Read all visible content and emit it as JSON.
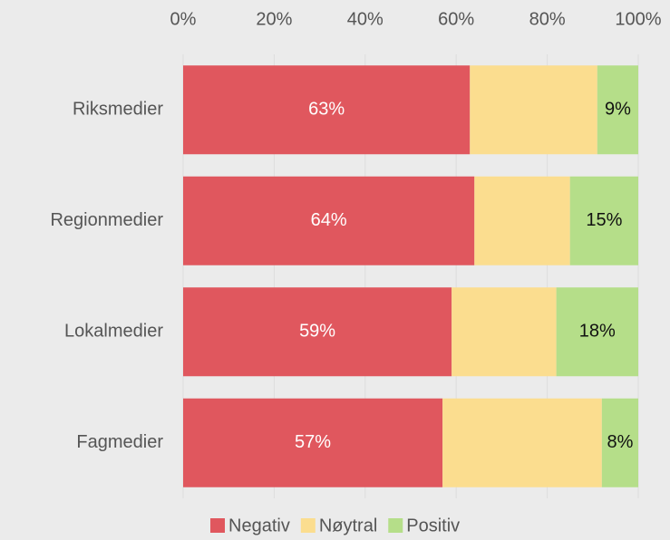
{
  "chart_data": {
    "type": "stacked-barh",
    "categories": [
      "Riksmedier",
      "Regionmedier",
      "Lokalmedier",
      "Fagmedier"
    ],
    "series": [
      {
        "name": "Negativ",
        "color": "#e0575e",
        "values": [
          63,
          64,
          59,
          57
        ],
        "value_labels": [
          "63%",
          "64%",
          "59%",
          "57%"
        ]
      },
      {
        "name": "Nøytral",
        "color": "#fbdd8f",
        "values": [
          28,
          21,
          23,
          35
        ]
      },
      {
        "name": "Positiv",
        "color": "#b5de89",
        "values": [
          9,
          15,
          18,
          8
        ],
        "value_labels": [
          "9%",
          "15%",
          "18%",
          "8%"
        ]
      }
    ],
    "xlim": [
      0,
      100
    ],
    "xticks": [
      {
        "value": 0,
        "label": "0%"
      },
      {
        "value": 20,
        "label": "20%"
      },
      {
        "value": 40,
        "label": "40%"
      },
      {
        "value": 60,
        "label": "60%"
      },
      {
        "value": 80,
        "label": "80%"
      },
      {
        "value": 100,
        "label": "100%"
      }
    ],
    "grid": true
  }
}
